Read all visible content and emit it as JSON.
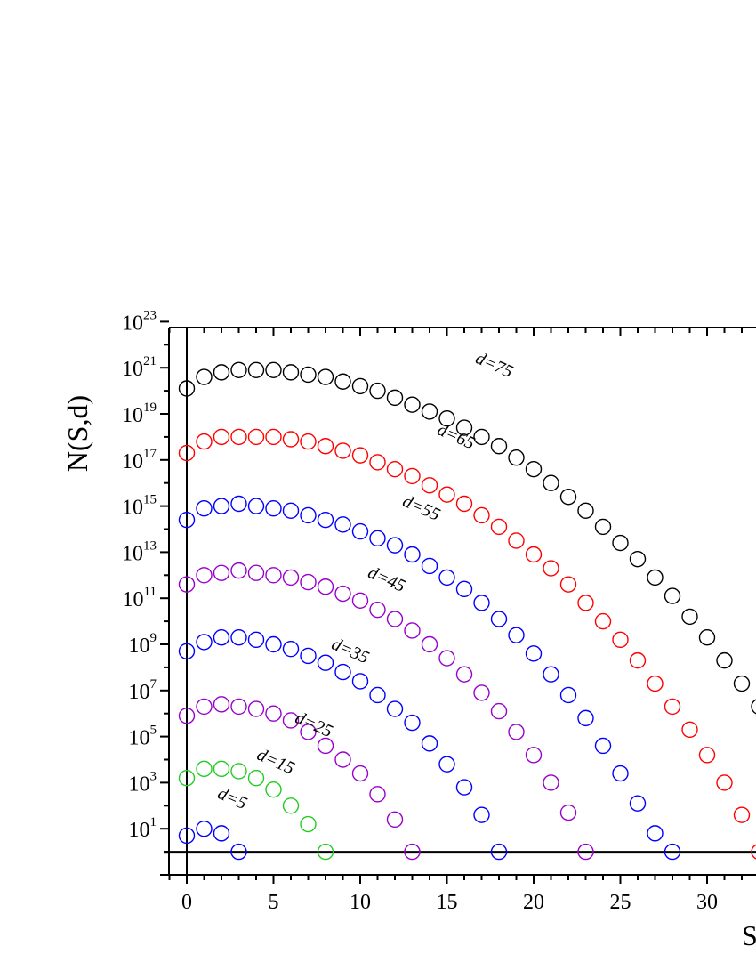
{
  "chart_data": {
    "type": "scatter",
    "title": "",
    "xlabel": "S",
    "ylabel": "N(S,d)",
    "y_scale": "log",
    "xlim": [
      -1,
      33
    ],
    "ylim_log10": [
      -1,
      23
    ],
    "x_ticks": [
      0,
      5,
      10,
      15,
      20,
      25,
      30
    ],
    "y_tick_labels": [
      {
        "base": "10",
        "exp": "1",
        "log10": 1
      },
      {
        "base": "10",
        "exp": "3",
        "log10": 3
      },
      {
        "base": "10",
        "exp": "5",
        "log10": 5
      },
      {
        "base": "10",
        "exp": "7",
        "log10": 7
      },
      {
        "base": "10",
        "exp": "9",
        "log10": 9
      },
      {
        "base": "10",
        "exp": "11",
        "log10": 11
      },
      {
        "base": "10",
        "exp": "13",
        "log10": 13
      },
      {
        "base": "10",
        "exp": "15",
        "log10": 15
      },
      {
        "base": "10",
        "exp": "17",
        "log10": 17
      },
      {
        "base": "10",
        "exp": "19",
        "log10": 19
      },
      {
        "base": "10",
        "exp": "21",
        "log10": 21
      },
      {
        "base": "10",
        "exp": "23",
        "log10": 23
      }
    ],
    "marker": "open-circle",
    "grid": false,
    "legend": "none",
    "series": [
      {
        "name": "d=5",
        "color": "#0000ff",
        "label_at": [
          2.5,
          2.1
        ],
        "x": [
          0,
          1,
          2,
          3
        ],
        "log10_y": [
          0.7,
          1.0,
          0.8,
          0.0
        ]
      },
      {
        "name": "d=15",
        "color": "#22cc22",
        "label_at": [
          5.0,
          3.7
        ],
        "x": [
          0,
          1,
          2,
          3,
          4,
          5,
          6,
          7,
          8
        ],
        "log10_y": [
          3.2,
          3.6,
          3.6,
          3.5,
          3.2,
          2.7,
          2.0,
          1.2,
          0.0
        ]
      },
      {
        "name": "d=25",
        "color": "#9900cc",
        "label_at": [
          7.2,
          5.3
        ],
        "x": [
          0,
          1,
          2,
          3,
          4,
          5,
          6,
          7,
          8,
          9,
          10,
          11,
          12,
          13
        ],
        "log10_y": [
          5.9,
          6.3,
          6.4,
          6.3,
          6.2,
          6.0,
          5.7,
          5.2,
          4.6,
          4.0,
          3.4,
          2.5,
          1.4,
          0.0
        ]
      },
      {
        "name": "d=35",
        "color": "#0000ff",
        "label_at": [
          9.3,
          8.5
        ],
        "x": [
          0,
          1,
          2,
          3,
          4,
          5,
          6,
          7,
          8,
          9,
          10,
          11,
          12,
          13,
          14,
          15,
          16,
          17,
          18
        ],
        "log10_y": [
          8.7,
          9.1,
          9.3,
          9.3,
          9.2,
          9.0,
          8.8,
          8.5,
          8.2,
          7.8,
          7.4,
          6.8,
          6.2,
          5.6,
          4.7,
          3.8,
          2.8,
          1.6,
          0.0
        ]
      },
      {
        "name": "d=45",
        "color": "#9900cc",
        "label_at": [
          11.4,
          11.6
        ],
        "x": [
          0,
          1,
          2,
          3,
          4,
          5,
          6,
          7,
          8,
          9,
          10,
          11,
          12,
          13,
          14,
          15,
          16,
          17,
          18,
          19,
          20,
          21,
          22,
          23
        ],
        "log10_y": [
          11.6,
          12.0,
          12.1,
          12.2,
          12.1,
          12.0,
          11.9,
          11.7,
          11.5,
          11.2,
          10.9,
          10.5,
          10.1,
          9.6,
          9.0,
          8.4,
          7.7,
          6.9,
          6.1,
          5.2,
          4.2,
          3.0,
          1.7,
          0.0
        ]
      },
      {
        "name": "d=55",
        "color": "#0000ff",
        "label_at": [
          13.4,
          14.7
        ],
        "x": [
          0,
          1,
          2,
          3,
          4,
          5,
          6,
          7,
          8,
          9,
          10,
          11,
          12,
          13,
          14,
          15,
          16,
          17,
          18,
          19,
          20,
          21,
          22,
          23,
          24,
          25,
          26,
          27,
          28
        ],
        "log10_y": [
          14.4,
          14.9,
          15.0,
          15.1,
          15.0,
          14.9,
          14.8,
          14.6,
          14.4,
          14.2,
          13.9,
          13.6,
          13.3,
          12.9,
          12.4,
          11.9,
          11.4,
          10.8,
          10.1,
          9.4,
          8.6,
          7.7,
          6.8,
          5.8,
          4.6,
          3.4,
          2.1,
          0.8,
          0.0
        ]
      },
      {
        "name": "d=65",
        "color": "#ff0000",
        "label_at": [
          15.4,
          17.8
        ],
        "x": [
          0,
          1,
          2,
          3,
          4,
          5,
          6,
          7,
          8,
          9,
          10,
          11,
          12,
          13,
          14,
          15,
          16,
          17,
          18,
          19,
          20,
          21,
          22,
          23,
          24,
          25,
          26,
          27,
          28,
          29,
          30,
          31,
          32,
          33
        ],
        "log10_y": [
          17.3,
          17.8,
          18.0,
          18.0,
          18.0,
          18.0,
          17.9,
          17.8,
          17.6,
          17.4,
          17.2,
          16.9,
          16.6,
          16.3,
          15.9,
          15.5,
          15.1,
          14.6,
          14.1,
          13.5,
          12.9,
          12.3,
          11.6,
          10.8,
          10.0,
          9.2,
          8.3,
          7.3,
          6.3,
          5.3,
          4.2,
          3.0,
          1.6,
          0.0
        ]
      },
      {
        "name": "d=75",
        "color": "#000000",
        "label_at": [
          17.6,
          20.9
        ],
        "x": [
          0,
          1,
          2,
          3,
          4,
          5,
          6,
          7,
          8,
          9,
          10,
          11,
          12,
          13,
          14,
          15,
          16,
          17,
          18,
          19,
          20,
          21,
          22,
          23,
          24,
          25,
          26,
          27,
          28,
          29,
          30,
          31,
          32,
          33
        ],
        "log10_y": [
          20.1,
          20.6,
          20.8,
          20.9,
          20.9,
          20.9,
          20.8,
          20.7,
          20.6,
          20.4,
          20.2,
          20.0,
          19.7,
          19.4,
          19.1,
          18.8,
          18.4,
          18.0,
          17.6,
          17.1,
          16.6,
          16.0,
          15.4,
          14.8,
          14.1,
          13.4,
          12.7,
          11.9,
          11.1,
          10.2,
          9.3,
          8.3,
          7.3,
          6.3
        ]
      }
    ]
  }
}
